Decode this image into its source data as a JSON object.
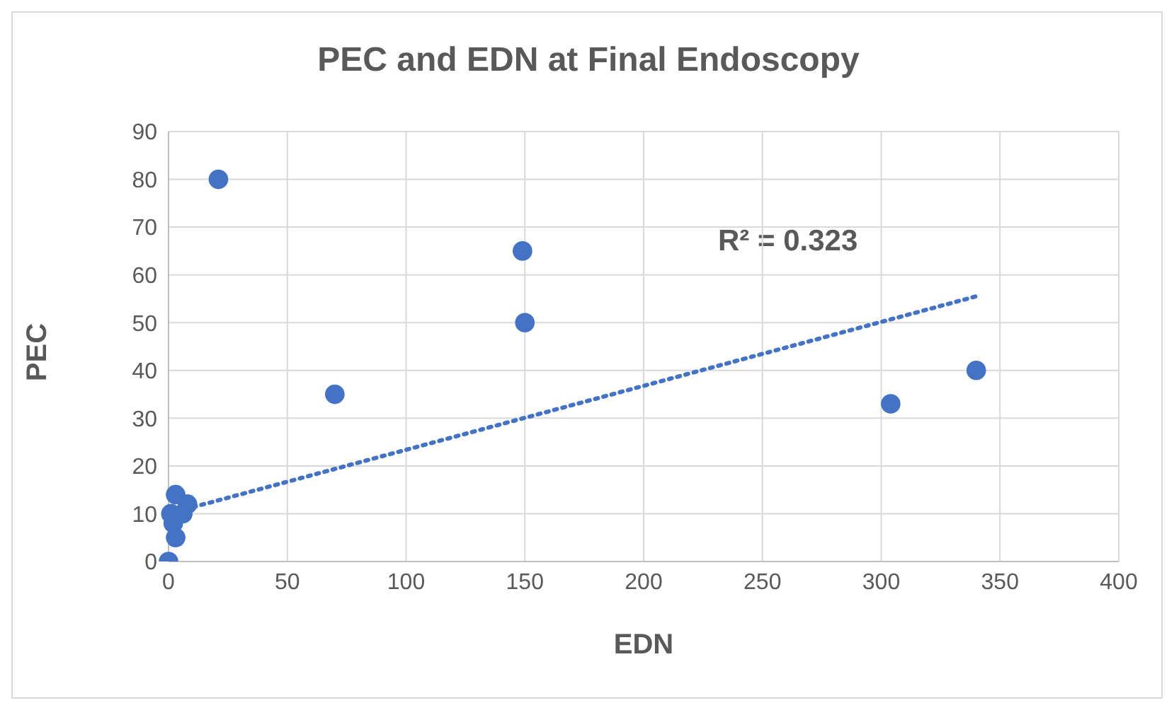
{
  "chart_data": {
    "type": "scatter",
    "title": "PEC and EDN at Final Endoscopy",
    "xlabel": "EDN",
    "ylabel": "PEC",
    "xlim": [
      0,
      400
    ],
    "xticks": [
      0,
      50,
      100,
      150,
      200,
      250,
      300,
      350,
      400
    ],
    "ylim": [
      0,
      90
    ],
    "yticks": [
      0,
      10,
      20,
      30,
      40,
      50,
      60,
      70,
      80,
      90
    ],
    "grid": true,
    "legend": false,
    "marker": "circle",
    "series": [
      {
        "type": "scatter",
        "color": "#4472c4",
        "x": [
          21,
          149,
          150,
          70,
          304,
          340,
          3,
          8,
          6,
          1,
          2,
          3,
          0
        ],
        "values": [
          80,
          65,
          50,
          35,
          33,
          40,
          14,
          12,
          10,
          10,
          8,
          5,
          0
        ]
      },
      {
        "type": "line",
        "color": "#4472c4",
        "line_style": "dotted",
        "marker": "none",
        "x": [
          0,
          340
        ],
        "values": [
          10,
          55.5
        ]
      }
    ],
    "annotations": [
      "R² = 0.323"
    ]
  }
}
